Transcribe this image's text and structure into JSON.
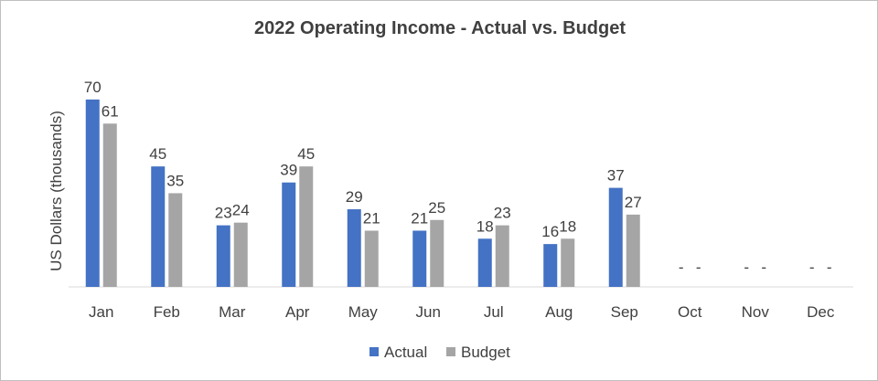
{
  "chart_data": {
    "type": "bar",
    "title": "2022 Operating Income - Actual vs. Budget",
    "xlabel": "",
    "ylabel": "US Dollars (thousands)",
    "categories": [
      "Jan",
      "Feb",
      "Mar",
      "Apr",
      "May",
      "Jun",
      "Jul",
      "Aug",
      "Sep",
      "Oct",
      "Nov",
      "Dec"
    ],
    "series": [
      {
        "name": "Actual",
        "color": "#4472C4",
        "values": [
          70,
          45,
          23,
          39,
          29,
          21,
          18,
          16,
          37,
          null,
          null,
          null
        ],
        "labels": [
          "70",
          "45",
          "23",
          "39",
          "29",
          "21",
          "18",
          "16",
          "37",
          "-",
          "-",
          "-"
        ]
      },
      {
        "name": "Budget",
        "color": "#A5A5A5",
        "values": [
          61,
          35,
          24,
          45,
          21,
          25,
          23,
          18,
          27,
          null,
          null,
          null
        ],
        "labels": [
          "61",
          "35",
          "24",
          "45",
          "21",
          "25",
          "23",
          "18",
          "27",
          "-",
          "-",
          "-"
        ]
      }
    ],
    "ylim": [
      0,
      70
    ],
    "grid": false,
    "legend_position": "bottom"
  }
}
